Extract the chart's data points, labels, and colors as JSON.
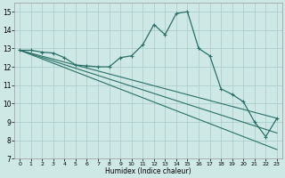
{
  "title": "",
  "xlabel": "Humidex (Indice chaleur)",
  "bg_color": "#cde8e5",
  "line_color": "#2a7068",
  "grid_color": "#aecfcc",
  "xlim": [
    -0.5,
    23.5
  ],
  "ylim": [
    7,
    15.5
  ],
  "xticks": [
    0,
    1,
    2,
    3,
    4,
    5,
    6,
    7,
    8,
    9,
    10,
    11,
    12,
    13,
    14,
    15,
    16,
    17,
    18,
    19,
    20,
    21,
    22,
    23
  ],
  "yticks": [
    7,
    8,
    9,
    10,
    11,
    12,
    13,
    14,
    15
  ],
  "main_line": {
    "x": [
      0,
      1,
      2,
      3,
      4,
      5,
      6,
      7,
      8,
      9,
      10,
      11,
      12,
      13,
      14,
      15,
      16,
      17,
      18,
      19,
      20,
      21,
      22,
      23
    ],
    "y": [
      12.9,
      12.9,
      12.8,
      12.75,
      12.5,
      12.1,
      12.05,
      12.0,
      12.0,
      12.5,
      12.6,
      13.2,
      14.3,
      13.75,
      14.9,
      15.0,
      13.0,
      12.6,
      10.8,
      10.5,
      10.1,
      9.0,
      8.2,
      9.2
    ]
  },
  "straight_lines": [
    {
      "x0": 0,
      "y0": 12.9,
      "x1": 23,
      "y1": 9.2
    },
    {
      "x0": 0,
      "y0": 12.9,
      "x1": 23,
      "y1": 8.4
    },
    {
      "x0": 0,
      "y0": 12.9,
      "x1": 23,
      "y1": 7.5
    }
  ],
  "figsize": [
    3.2,
    2.0
  ],
  "dpi": 100
}
